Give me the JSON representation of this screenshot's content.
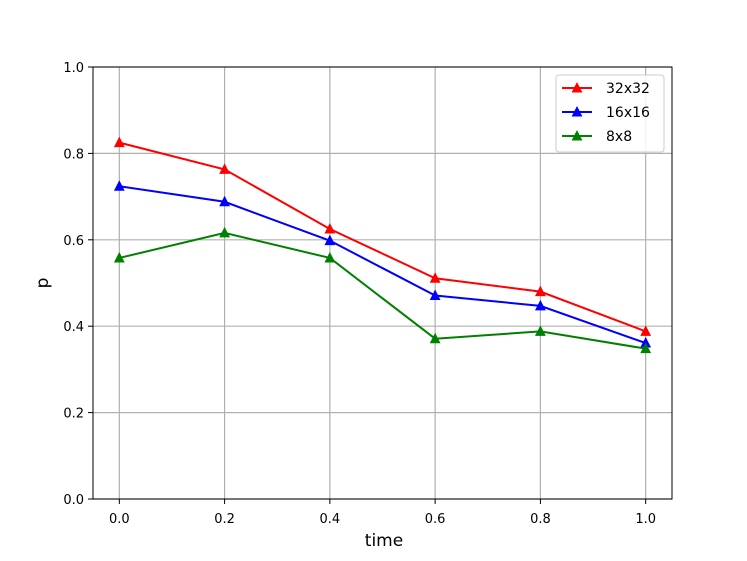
{
  "chart_data": {
    "type": "line",
    "xlabel": "time",
    "ylabel": "p",
    "x": [
      0.0,
      0.2,
      0.4,
      0.6,
      0.8,
      1.0
    ],
    "xlim": [
      -0.05,
      1.05
    ],
    "ylim": [
      0.0,
      1.0
    ],
    "xticks": [
      "0.0",
      "0.2",
      "0.4",
      "0.6",
      "0.8",
      "1.0"
    ],
    "yticks": [
      "0.0",
      "0.2",
      "0.4",
      "0.6",
      "0.8",
      "1.0"
    ],
    "grid": true,
    "legend_position": "top-right",
    "marker": "triangle",
    "series": [
      {
        "name": "32x32",
        "color": "#ff0000",
        "values": [
          0.825,
          0.763,
          0.625,
          0.511,
          0.48,
          0.388
        ]
      },
      {
        "name": "16x16",
        "color": "#0000ff",
        "values": [
          0.724,
          0.688,
          0.598,
          0.471,
          0.447,
          0.361
        ]
      },
      {
        "name": "8x8",
        "color": "#008000",
        "values": [
          0.558,
          0.616,
          0.558,
          0.371,
          0.388,
          0.348
        ]
      }
    ]
  }
}
